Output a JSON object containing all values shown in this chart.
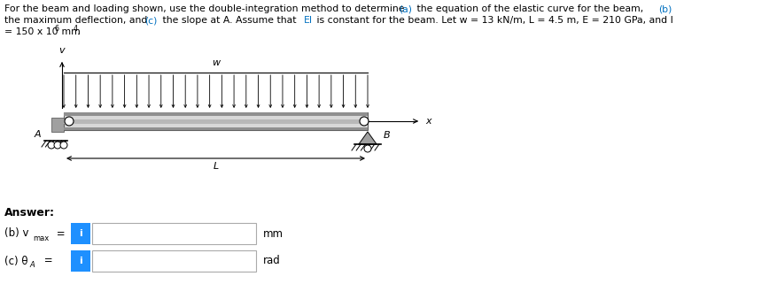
{
  "title_line1_parts": [
    [
      "For the beam and loading shown, use the double-integration method to determine ",
      "#000000"
    ],
    [
      "(a)",
      "#0070C0"
    ],
    [
      " the equation of the elastic curve for the beam, ",
      "#000000"
    ],
    [
      "(b)",
      "#0070C0"
    ]
  ],
  "title_line2_parts": [
    [
      "the maximum deflection, and ",
      "#000000"
    ],
    [
      "(c)",
      "#0070C0"
    ],
    [
      " the slope at A. Assume that ",
      "#000000"
    ],
    [
      "EI",
      "#0070C0"
    ],
    [
      " is constant for the beam. Let w = 13 kN/m, L = 4.5 m, E = 210 GPa, and I",
      "#000000"
    ]
  ],
  "title_line3_main": "= 150 x 10",
  "title_line3_sup": "6",
  "title_line3_mm": " mm",
  "title_line3_sup2": "4",
  "title_line3_dot": ".",
  "answer_label": "Answer:",
  "part_b_text": "(b) v",
  "part_b_sub": "max",
  "part_b_eq": " =",
  "part_b_unit": "mm",
  "part_c_text": "(c) θ",
  "part_c_sub": "A",
  "part_c_eq": " =",
  "part_c_unit": "rad",
  "label_v": "v",
  "label_x": "x",
  "label_w": "w",
  "label_L": "L",
  "label_A": "A",
  "label_B": "B",
  "info_btn_color": "#1E90FF",
  "beam_light": "#D8D8D8",
  "beam_mid": "#B8B8B8",
  "beam_dark": "#909090",
  "beam_edge": "#606060",
  "support_color": "#909090",
  "arrow_color": "#000000",
  "bg_color": "#FFFFFF",
  "fontsize_title": 7.8,
  "fontsize_labels": 8.0,
  "fontsize_answer": 9.0
}
